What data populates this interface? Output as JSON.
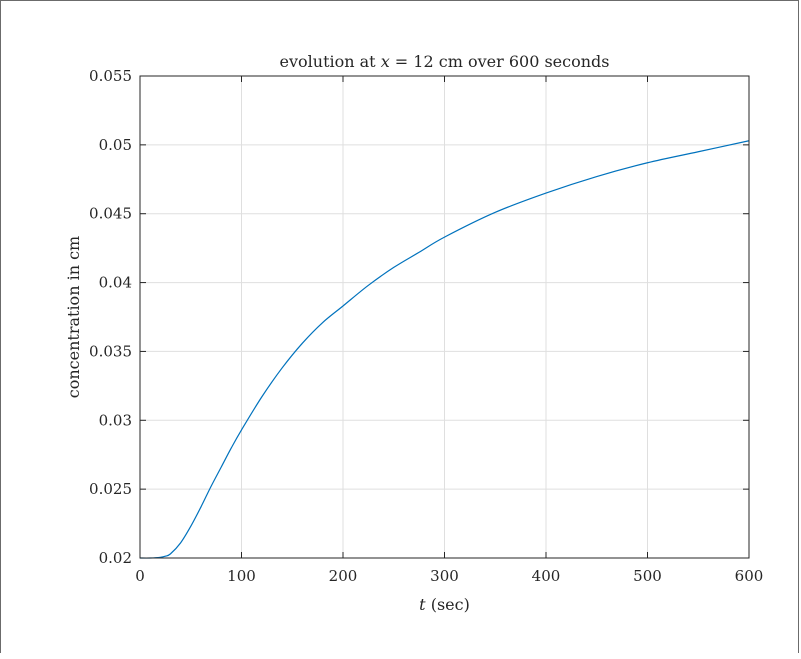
{
  "chart_data": {
    "type": "line",
    "title_prefix": "evolution at ",
    "title_var": "x",
    "title_suffix": " = 12 cm over 600 seconds",
    "xlabel_var": "t",
    "xlabel_suffix": " (sec)",
    "ylabel": "concentration in cm",
    "xlim": [
      0,
      600
    ],
    "ylim": [
      0.02,
      0.055
    ],
    "xticks": [
      0,
      100,
      200,
      300,
      400,
      500,
      600
    ],
    "xtick_labels": [
      "0",
      "100",
      "200",
      "300",
      "400",
      "500",
      "600"
    ],
    "yticks": [
      0.02,
      0.025,
      0.03,
      0.035,
      0.04,
      0.045,
      0.05,
      0.055
    ],
    "ytick_labels": [
      "0.02",
      "0.025",
      "0.03",
      "0.035",
      "0.04",
      "0.045",
      "0.05",
      "0.055"
    ],
    "grid": true,
    "line_color": "#0072BD",
    "series": [
      {
        "x": [
          0,
          10,
          20,
          25,
          30,
          40,
          50,
          60,
          70,
          80,
          90,
          100,
          120,
          140,
          160,
          180,
          200,
          225,
          250,
          275,
          300,
          350,
          400,
          450,
          500,
          550,
          600
        ],
        "y": [
          0.02,
          0.02,
          0.02005,
          0.02013,
          0.0203,
          0.0211,
          0.0223,
          0.0237,
          0.0252,
          0.0266,
          0.028,
          0.0293,
          0.0317,
          0.0338,
          0.0356,
          0.0371,
          0.0383,
          0.0398,
          0.0411,
          0.0422,
          0.0433,
          0.0451,
          0.0465,
          0.0477,
          0.0487,
          0.0495,
          0.0503
        ]
      }
    ]
  }
}
